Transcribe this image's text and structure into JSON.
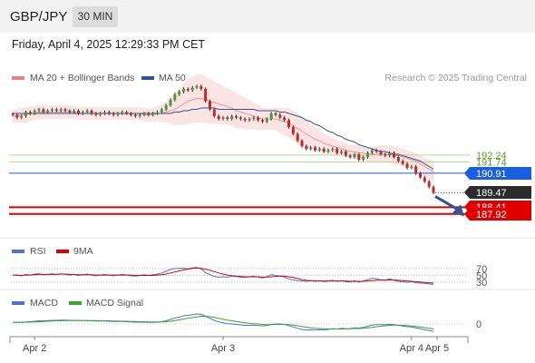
{
  "header": {
    "symbol": "GBP/JPY",
    "timeframe": "30 MIN"
  },
  "datetime": "Friday, April 4, 2025 12:29:33 PM CET",
  "legend": {
    "ma20_label": "MA 20 + Bollinger Bands",
    "ma20_color": "#f08080",
    "ma50_label": "MA 50",
    "ma50_color": "#2f5597"
  },
  "copyright": "Research © 2025 Trading Central",
  "levels": [
    {
      "label": "192.24",
      "value": 192.24,
      "kind": "text",
      "color": "#5aa02c"
    },
    {
      "label": "191.74",
      "value": 191.74,
      "kind": "text",
      "color": "#5aa02c"
    },
    {
      "label": "190.91",
      "value": 190.91,
      "kind": "box",
      "color": "#1a5fe0"
    },
    {
      "label": "189.47",
      "value": 189.47,
      "kind": "box",
      "color": "#2b2b2b"
    },
    {
      "label": "188.41",
      "value": 188.41,
      "kind": "box",
      "color": "#e00000"
    },
    {
      "label": "187.92",
      "value": 187.92,
      "kind": "box",
      "color": "#e00000"
    }
  ],
  "rsi": {
    "label": "RSI",
    "signal_label": "9MA",
    "color": "#4a72d8",
    "signal_color": "#e00000",
    "levels": [
      "70",
      "50",
      "30"
    ]
  },
  "macd": {
    "label": "MACD",
    "signal_label": "MACD Signal",
    "color": "#4a72d8",
    "signal_color": "#3aa52a",
    "zero_label": "0"
  },
  "xaxis": [
    "Apr 2",
    "Apr 3",
    "Apr 4",
    "Apr 5"
  ],
  "chart_data": {
    "type": "candlestick",
    "ylim": [
      187.3,
      197.3
    ],
    "close": [
      195.2,
      195.0,
      195.1,
      195.4,
      195.3,
      195.5,
      195.6,
      195.4,
      195.5,
      195.6,
      195.5,
      195.6,
      195.5,
      195.4,
      195.5,
      195.3,
      195.4,
      195.5,
      195.3,
      195.2,
      195.3,
      195.4,
      195.3,
      195.2,
      195.3,
      195.4,
      195.3,
      195.2,
      195.1,
      195.2,
      195.3,
      195.2,
      195.3,
      195.4,
      195.6,
      195.9,
      196.3,
      196.7,
      196.9,
      197.1,
      197.0,
      197.2,
      197.3,
      197.1,
      196.2,
      195.6,
      195.1,
      194.9,
      195.0,
      194.9,
      195.1,
      195.0,
      194.9,
      194.8,
      194.9,
      195.0,
      194.8,
      194.7,
      194.9,
      195.3,
      195.2,
      195.0,
      194.8,
      194.3,
      193.8,
      193.3,
      192.9,
      192.7,
      192.8,
      192.6,
      192.7,
      192.5,
      192.6,
      192.7,
      192.4,
      192.5,
      192.2,
      192.1,
      192.3,
      191.9,
      192.1,
      192.4,
      192.6,
      192.5,
      192.3,
      192.2,
      192.4,
      192.1,
      191.8,
      191.6,
      191.3,
      191.4,
      190.9,
      190.6,
      190.3,
      189.9,
      189.47
    ],
    "ma20": [
      195.1,
      195.1,
      195.2,
      195.2,
      195.3,
      195.3,
      195.4,
      195.4,
      195.4,
      195.4,
      195.4,
      195.4,
      195.4,
      195.4,
      195.4,
      195.3,
      195.3,
      195.3,
      195.3,
      195.3,
      195.3,
      195.3,
      195.3,
      195.3,
      195.3,
      195.3,
      195.3,
      195.3,
      195.3,
      195.3,
      195.2,
      195.2,
      195.2,
      195.3,
      195.3,
      195.4,
      195.5,
      195.6,
      195.8,
      196.0,
      196.2,
      196.3,
      196.4,
      196.4,
      196.3,
      196.2,
      196.1,
      196.0,
      195.9,
      195.8,
      195.7,
      195.5,
      195.4,
      195.3,
      195.2,
      195.1,
      195.0,
      194.9,
      194.9,
      194.9,
      194.9,
      194.8,
      194.7,
      194.6,
      194.4,
      194.2,
      194.0,
      193.8,
      193.6,
      193.4,
      193.3,
      193.1,
      193.0,
      192.9,
      192.8,
      192.7,
      192.6,
      192.5,
      192.5,
      192.4,
      192.4,
      192.3,
      192.3,
      192.3,
      192.3,
      192.3,
      192.3,
      192.2,
      192.2,
      192.1,
      192.0,
      191.9,
      191.8,
      191.6,
      191.4,
      191.2,
      191.0
    ],
    "ma50": [
      195.3,
      195.3,
      195.3,
      195.3,
      195.3,
      195.3,
      195.3,
      195.3,
      195.3,
      195.3,
      195.3,
      195.3,
      195.3,
      195.3,
      195.3,
      195.3,
      195.3,
      195.3,
      195.3,
      195.3,
      195.3,
      195.3,
      195.3,
      195.3,
      195.3,
      195.3,
      195.3,
      195.3,
      195.3,
      195.3,
      195.3,
      195.3,
      195.3,
      195.3,
      195.3,
      195.3,
      195.3,
      195.4,
      195.4,
      195.5,
      195.5,
      195.6,
      195.6,
      195.7,
      195.7,
      195.7,
      195.7,
      195.6,
      195.6,
      195.6,
      195.6,
      195.6,
      195.6,
      195.6,
      195.6,
      195.6,
      195.5,
      195.5,
      195.5,
      195.5,
      195.5,
      195.4,
      195.4,
      195.3,
      195.2,
      195.1,
      195.0,
      194.8,
      194.7,
      194.5,
      194.4,
      194.2,
      194.0,
      193.9,
      193.7,
      193.6,
      193.4,
      193.3,
      193.2,
      193.0,
      192.9,
      192.8,
      192.7,
      192.6,
      192.5,
      192.5,
      192.4,
      192.3,
      192.3,
      192.2,
      192.1,
      192.0,
      191.9,
      191.8,
      191.6,
      191.4,
      191.2
    ],
    "rsi": [
      52,
      50,
      49,
      53,
      51,
      54,
      55,
      52,
      53,
      55,
      53,
      55,
      53,
      51,
      53,
      50,
      52,
      54,
      51,
      49,
      51,
      53,
      51,
      49,
      51,
      53,
      51,
      49,
      48,
      50,
      52,
      50,
      52,
      54,
      57,
      62,
      67,
      70,
      70,
      71,
      69,
      72,
      73,
      69,
      58,
      52,
      47,
      45,
      46,
      45,
      48,
      47,
      45,
      44,
      46,
      48,
      45,
      43,
      46,
      52,
      50,
      48,
      45,
      40,
      37,
      35,
      34,
      33,
      35,
      33,
      35,
      32,
      34,
      36,
      33,
      35,
      32,
      31,
      35,
      31,
      34,
      38,
      42,
      40,
      37,
      36,
      40,
      36,
      33,
      32,
      30,
      32,
      29,
      28,
      27,
      26,
      24
    ],
    "rsi_signal": [
      51,
      51,
      50,
      51,
      51,
      52,
      53,
      53,
      53,
      53,
      53,
      54,
      54,
      53,
      53,
      52,
      52,
      52,
      52,
      51,
      51,
      51,
      51,
      51,
      51,
      51,
      51,
      51,
      50,
      50,
      50,
      50,
      50,
      51,
      52,
      54,
      57,
      60,
      63,
      66,
      68,
      70,
      71,
      70,
      68,
      65,
      61,
      57,
      54,
      51,
      49,
      48,
      47,
      46,
      46,
      46,
      46,
      45,
      45,
      46,
      47,
      48,
      48,
      46,
      44,
      41,
      38,
      36,
      35,
      34,
      34,
      34,
      34,
      34,
      34,
      34,
      34,
      33,
      33,
      33,
      33,
      34,
      35,
      36,
      37,
      37,
      37,
      37,
      36,
      35,
      34,
      33,
      32,
      31,
      30,
      29,
      28
    ],
    "macd": [
      0.08,
      0.07,
      0.07,
      0.09,
      0.1,
      0.12,
      0.14,
      0.14,
      0.15,
      0.16,
      0.16,
      0.17,
      0.17,
      0.16,
      0.16,
      0.15,
      0.15,
      0.15,
      0.14,
      0.13,
      0.13,
      0.13,
      0.12,
      0.11,
      0.11,
      0.11,
      0.1,
      0.09,
      0.08,
      0.08,
      0.08,
      0.07,
      0.07,
      0.08,
      0.1,
      0.14,
      0.2,
      0.26,
      0.31,
      0.36,
      0.38,
      0.41,
      0.44,
      0.43,
      0.34,
      0.25,
      0.16,
      0.09,
      0.05,
      0.01,
      0.0,
      -0.02,
      -0.04,
      -0.06,
      -0.06,
      -0.05,
      -0.07,
      -0.08,
      -0.07,
      -0.02,
      0.0,
      0.0,
      -0.02,
      -0.07,
      -0.13,
      -0.19,
      -0.24,
      -0.27,
      -0.26,
      -0.27,
      -0.25,
      -0.26,
      -0.24,
      -0.21,
      -0.22,
      -0.19,
      -0.21,
      -0.21,
      -0.17,
      -0.18,
      -0.15,
      -0.1,
      -0.05,
      -0.03,
      -0.03,
      -0.03,
      -0.01,
      -0.03,
      -0.06,
      -0.09,
      -0.12,
      -0.13,
      -0.17,
      -0.21,
      -0.25,
      -0.29,
      -0.33
    ],
    "macd_signal": [
      0.07,
      0.07,
      0.07,
      0.08,
      0.08,
      0.09,
      0.1,
      0.11,
      0.12,
      0.13,
      0.14,
      0.14,
      0.15,
      0.15,
      0.15,
      0.15,
      0.15,
      0.15,
      0.15,
      0.15,
      0.14,
      0.14,
      0.14,
      0.13,
      0.13,
      0.12,
      0.12,
      0.11,
      0.11,
      0.1,
      0.1,
      0.09,
      0.09,
      0.09,
      0.09,
      0.1,
      0.12,
      0.15,
      0.18,
      0.22,
      0.25,
      0.28,
      0.31,
      0.34,
      0.34,
      0.32,
      0.29,
      0.25,
      0.21,
      0.17,
      0.14,
      0.11,
      0.08,
      0.05,
      0.03,
      0.01,
      0.0,
      -0.02,
      -0.03,
      -0.03,
      -0.02,
      -0.02,
      -0.02,
      -0.03,
      -0.05,
      -0.08,
      -0.11,
      -0.14,
      -0.17,
      -0.19,
      -0.2,
      -0.21,
      -0.22,
      -0.22,
      -0.22,
      -0.22,
      -0.22,
      -0.21,
      -0.2,
      -0.2,
      -0.19,
      -0.17,
      -0.15,
      -0.12,
      -0.1,
      -0.08,
      -0.06,
      -0.05,
      -0.05,
      -0.06,
      -0.07,
      -0.09,
      -0.11,
      -0.13,
      -0.16,
      -0.19,
      -0.22
    ],
    "xticks": [
      "Apr 2",
      "Apr 3",
      "Apr 4",
      "Apr 5"
    ],
    "projection": {
      "from": 189.47,
      "to": 188.41,
      "direction": "down"
    }
  }
}
